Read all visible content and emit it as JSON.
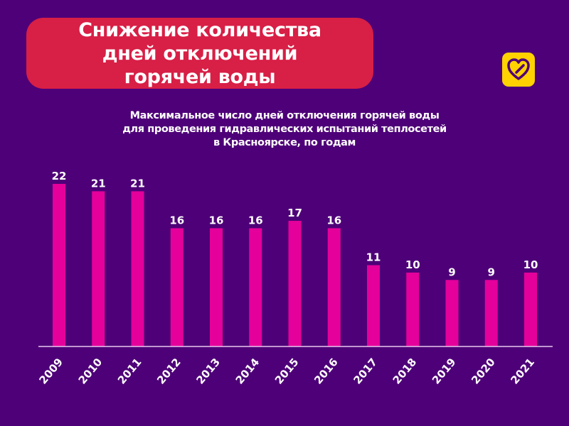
{
  "header": {
    "title": "Снижение количества\nдней отключений\nгорячей воды",
    "logo_icon": "heart-icon"
  },
  "colors": {
    "background": "#4e0078",
    "title_box": "#d81f46",
    "bar": "#e5009b",
    "logo": "#ffd200"
  },
  "chart_data": {
    "type": "bar",
    "title": "Максимальное число дней отключения горячей воды\nдля проведения гидравлических испытаний теплосетей\nв Красноярске, по годам",
    "categories": [
      "2009",
      "2010",
      "2011",
      "2012",
      "2013",
      "2014",
      "2015",
      "2016",
      "2017",
      "2018",
      "2019",
      "2020",
      "2021"
    ],
    "values": [
      22,
      21,
      21,
      16,
      16,
      16,
      17,
      16,
      11,
      10,
      9,
      9,
      10
    ],
    "xlabel": "",
    "ylabel": "",
    "ylim": [
      0,
      22
    ],
    "grid": false,
    "data_labels": true
  }
}
